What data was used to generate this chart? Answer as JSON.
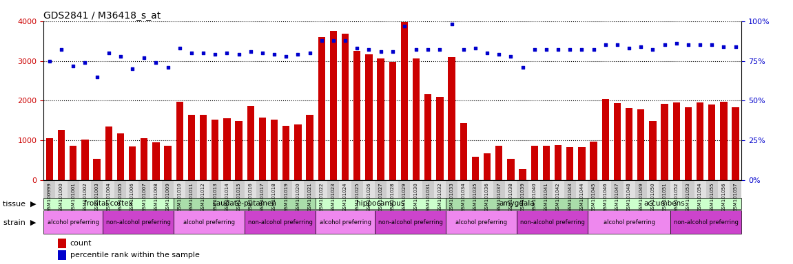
{
  "title": "GDS2841 / M36418_s_at",
  "samples": [
    "GSM100999",
    "GSM101000",
    "GSM101001",
    "GSM101002",
    "GSM101003",
    "GSM101004",
    "GSM101005",
    "GSM101006",
    "GSM101007",
    "GSM101008",
    "GSM101009",
    "GSM101010",
    "GSM101011",
    "GSM101012",
    "GSM101013",
    "GSM101014",
    "GSM101015",
    "GSM101016",
    "GSM101017",
    "GSM101018",
    "GSM101019",
    "GSM101020",
    "GSM101021",
    "GSM101022",
    "GSM101023",
    "GSM101024",
    "GSM101025",
    "GSM101026",
    "GSM101027",
    "GSM101028",
    "GSM101029",
    "GSM101030",
    "GSM101031",
    "GSM101032",
    "GSM101033",
    "GSM101034",
    "GSM101035",
    "GSM101036",
    "GSM101037",
    "GSM101038",
    "GSM101039",
    "GSM101040",
    "GSM101041",
    "GSM101042",
    "GSM101043",
    "GSM101044",
    "GSM101045",
    "GSM101046",
    "GSM101047",
    "GSM101048",
    "GSM101049",
    "GSM101050",
    "GSM101051",
    "GSM101052",
    "GSM101053",
    "GSM101054",
    "GSM101055",
    "GSM101056",
    "GSM101057"
  ],
  "counts": [
    1050,
    1270,
    870,
    1020,
    540,
    1360,
    1180,
    850,
    1060,
    950,
    870,
    1980,
    1640,
    1640,
    1520,
    1560,
    1490,
    1870,
    1580,
    1530,
    1370,
    1410,
    1640,
    3600,
    3750,
    3680,
    3250,
    3160,
    3060,
    2970,
    3980,
    3060,
    2160,
    2100,
    3100,
    1430,
    600,
    680,
    870,
    540,
    280,
    860,
    870,
    880,
    840,
    840,
    980,
    2040,
    1940,
    1820,
    1790,
    1490,
    1920,
    1960,
    1840,
    1960,
    1900,
    1980,
    1840
  ],
  "percentiles": [
    75,
    82,
    72,
    74,
    65,
    80,
    78,
    70,
    77,
    74,
    71,
    83,
    80,
    80,
    79,
    80,
    79,
    81,
    80,
    79,
    78,
    79,
    80,
    88,
    88,
    88,
    83,
    82,
    81,
    81,
    97,
    82,
    82,
    82,
    98,
    82,
    83,
    80,
    79,
    78,
    71,
    82,
    82,
    82,
    82,
    82,
    82,
    85,
    85,
    83,
    84,
    82,
    85,
    86,
    85,
    85,
    85,
    84,
    84
  ],
  "ylim_left": [
    0,
    4000
  ],
  "ylim_right": [
    0,
    100
  ],
  "yticks_left": [
    0,
    1000,
    2000,
    3000,
    4000
  ],
  "yticks_right": [
    0,
    25,
    50,
    75,
    100
  ],
  "bar_color": "#cc0000",
  "dot_color": "#0000cc",
  "tissue_groups": [
    {
      "label": "frontal cortex",
      "start": 0,
      "end": 10,
      "color": "#ccffcc"
    },
    {
      "label": "caudate-putamen",
      "start": 11,
      "end": 22,
      "color": "#ccffcc"
    },
    {
      "label": "hippocampus",
      "start": 23,
      "end": 33,
      "color": "#66dd66"
    },
    {
      "label": "amygdala",
      "start": 34,
      "end": 45,
      "color": "#66dd66"
    },
    {
      "label": "accumbens",
      "start": 46,
      "end": 58,
      "color": "#66dd66"
    }
  ],
  "strain_groups": [
    {
      "label": "alcohol preferring",
      "start": 0,
      "end": 4,
      "color": "#ee88ee"
    },
    {
      "label": "non-alcohol preferring",
      "start": 5,
      "end": 10,
      "color": "#cc44cc"
    },
    {
      "label": "alcohol preferring",
      "start": 11,
      "end": 16,
      "color": "#ee88ee"
    },
    {
      "label": "non-alcohol preferring",
      "start": 17,
      "end": 22,
      "color": "#cc44cc"
    },
    {
      "label": "alcohol preferring",
      "start": 23,
      "end": 27,
      "color": "#ee88ee"
    },
    {
      "label": "non-alcohol preferring",
      "start": 28,
      "end": 33,
      "color": "#cc44cc"
    },
    {
      "label": "alcohol preferring",
      "start": 34,
      "end": 39,
      "color": "#ee88ee"
    },
    {
      "label": "non-alcohol preferring",
      "start": 40,
      "end": 45,
      "color": "#cc44cc"
    },
    {
      "label": "alcohol preferring",
      "start": 46,
      "end": 52,
      "color": "#ee88ee"
    },
    {
      "label": "non-alcohol preferring",
      "start": 53,
      "end": 58,
      "color": "#cc44cc"
    }
  ],
  "xtick_colors": [
    "#cccccc",
    "#e8e8e8"
  ],
  "background_color": "#ffffff"
}
